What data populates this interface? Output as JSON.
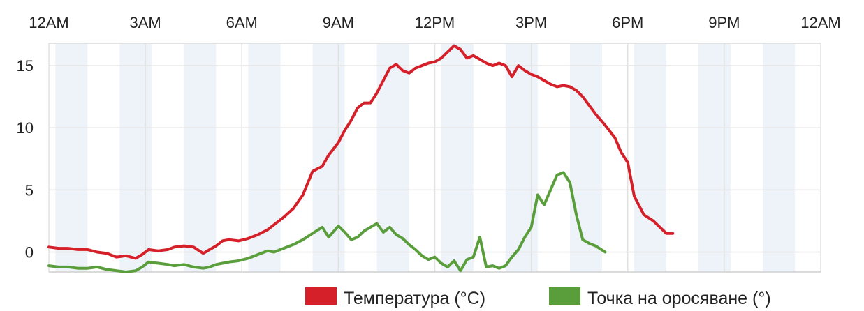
{
  "chart_data": {
    "type": "line",
    "title": "",
    "xlabel": "",
    "ylabel": "",
    "x_unit": "hours since midnight",
    "xlim": [
      0,
      24
    ],
    "ylim": [
      -1.6,
      16.8
    ],
    "x_ticks": [
      {
        "hour": 0,
        "label": "12AM"
      },
      {
        "hour": 3,
        "label": "3AM"
      },
      {
        "hour": 6,
        "label": "6AM"
      },
      {
        "hour": 9,
        "label": "9AM"
      },
      {
        "hour": 12,
        "label": "12PM"
      },
      {
        "hour": 15,
        "label": "3PM"
      },
      {
        "hour": 18,
        "label": "6PM"
      },
      {
        "hour": 21,
        "label": "9PM"
      },
      {
        "hour": 24,
        "label": "12AM"
      }
    ],
    "y_ticks": [
      {
        "value": 0,
        "label": "0"
      },
      {
        "value": 5,
        "label": "5"
      },
      {
        "value": 10,
        "label": "10"
      },
      {
        "value": 15,
        "label": "15"
      }
    ],
    "shaded_hour_bands": [
      [
        0.2,
        1.2
      ],
      [
        2.2,
        3.2
      ],
      [
        4.2,
        5.2
      ],
      [
        6.2,
        7.2
      ],
      [
        8.2,
        9.2
      ],
      [
        10.2,
        11.2
      ],
      [
        12.2,
        13.2
      ],
      [
        14.2,
        15.2
      ],
      [
        16.2,
        17.2
      ],
      [
        18.2,
        19.2
      ],
      [
        20.2,
        21.2
      ],
      [
        22.2,
        23.2
      ]
    ],
    "grid": true,
    "legend_position": "bottom-right",
    "series": [
      {
        "name": "Температура (°C)",
        "color": "#d5202a",
        "x": [
          0,
          0.3,
          0.6,
          0.9,
          1.2,
          1.5,
          1.8,
          2.1,
          2.4,
          2.7,
          2.9,
          3.1,
          3.4,
          3.7,
          3.9,
          4.2,
          4.5,
          4.8,
          5.0,
          5.2,
          5.4,
          5.6,
          5.9,
          6.2,
          6.5,
          6.8,
          7.0,
          7.3,
          7.6,
          7.9,
          8.2,
          8.5,
          8.7,
          9.0,
          9.2,
          9.4,
          9.6,
          9.8,
          10.0,
          10.2,
          10.4,
          10.6,
          10.8,
          11.0,
          11.2,
          11.4,
          11.6,
          11.8,
          12.0,
          12.2,
          12.4,
          12.6,
          12.8,
          13.0,
          13.2,
          13.4,
          13.6,
          13.8,
          14.0,
          14.2,
          14.4,
          14.6,
          14.8,
          15.0,
          15.2,
          15.4,
          15.6,
          15.8,
          16.0,
          16.2,
          16.4,
          16.6,
          16.8,
          17.0,
          17.3,
          17.6,
          17.8,
          18.0,
          18.2,
          18.5,
          18.8,
          19.0,
          19.2,
          19.4,
          19.6,
          19.8,
          20.0,
          20.2,
          20.3
        ],
        "values": [
          0.4,
          0.3,
          0.3,
          0.2,
          0.2,
          0.0,
          -0.1,
          -0.4,
          -0.3,
          -0.5,
          -0.2,
          0.2,
          0.1,
          0.2,
          0.4,
          0.5,
          0.4,
          -0.1,
          0.2,
          0.5,
          0.9,
          1.0,
          0.9,
          1.1,
          1.4,
          1.8,
          2.2,
          2.8,
          3.5,
          4.6,
          6.5,
          6.9,
          7.8,
          8.8,
          9.8,
          10.6,
          11.6,
          12.0,
          12.0,
          12.8,
          13.8,
          14.8,
          15.1,
          14.6,
          14.4,
          14.8,
          15.0,
          15.2,
          15.3,
          15.6,
          16.1,
          16.6,
          16.3,
          15.6,
          15.8,
          15.5,
          15.2,
          15.0,
          15.2,
          15.0,
          14.1,
          15.0,
          14.6,
          14.3,
          14.1,
          13.8,
          13.5,
          13.3,
          13.4,
          13.3,
          13.0,
          12.5,
          11.8,
          11.1,
          10.2,
          9.2,
          8.0,
          7.2,
          4.5,
          3.0,
          2.5,
          2.0,
          1.5,
          1.5,
          null,
          null,
          null,
          null,
          null
        ],
        "values_note": "temperature"
      },
      {
        "name": "Точка на оросяване (°)",
        "color": "#5a9e3c",
        "x": [
          0,
          0.3,
          0.6,
          0.9,
          1.2,
          1.5,
          1.8,
          2.1,
          2.4,
          2.7,
          2.9,
          3.1,
          3.4,
          3.7,
          3.9,
          4.2,
          4.5,
          4.8,
          5.0,
          5.2,
          5.4,
          5.6,
          5.9,
          6.2,
          6.5,
          6.8,
          7.0,
          7.3,
          7.6,
          7.9,
          8.2,
          8.5,
          8.7,
          9.0,
          9.2,
          9.4,
          9.6,
          9.8,
          10.0,
          10.2,
          10.4,
          10.6,
          10.8,
          11.0,
          11.2,
          11.4,
          11.6,
          11.8,
          12.0,
          12.2,
          12.4,
          12.6,
          12.8,
          13.0,
          13.2,
          13.4,
          13.6,
          13.8,
          14.0,
          14.2,
          14.4,
          14.6,
          14.8,
          15.0,
          15.2,
          15.4,
          15.6,
          15.8,
          16.0,
          16.2,
          16.4,
          16.6,
          16.8,
          17.0,
          17.3,
          17.6,
          17.8,
          18.0,
          18.2,
          18.5,
          18.8,
          19.0,
          19.2,
          19.4,
          19.6,
          19.8,
          20.0,
          20.2,
          20.3
        ],
        "values": [
          -1.1,
          -1.2,
          -1.2,
          -1.3,
          -1.3,
          -1.2,
          -1.4,
          -1.5,
          -1.6,
          -1.5,
          -1.2,
          -0.8,
          -0.9,
          -1.0,
          -1.1,
          -1.0,
          -1.2,
          -1.3,
          -1.2,
          -1.0,
          -0.9,
          -0.8,
          -0.7,
          -0.5,
          -0.2,
          0.1,
          0.0,
          0.3,
          0.6,
          1.0,
          1.5,
          2.0,
          1.2,
          2.1,
          1.6,
          1.0,
          1.2,
          1.7,
          2.0,
          2.3,
          1.6,
          2.0,
          1.4,
          1.1,
          0.6,
          0.2,
          -0.3,
          -0.6,
          -0.4,
          -0.9,
          -1.2,
          -0.7,
          -1.5,
          -0.6,
          -0.4,
          1.2,
          -1.2,
          -1.1,
          -1.3,
          -1.1,
          -0.4,
          0.2,
          1.2,
          2.0,
          4.6,
          3.8,
          5.0,
          6.2,
          6.4,
          5.6,
          3.0,
          1.0,
          0.7,
          0.5,
          0.0,
          null,
          null,
          null,
          null,
          null,
          null,
          null,
          null,
          null,
          null,
          null,
          null,
          null,
          null
        ],
        "values_note": "dew point"
      }
    ]
  },
  "legend": {
    "items": [
      {
        "label": "Температура (°C)",
        "color": "#d5202a"
      },
      {
        "label": "Точка на оросяване (°)",
        "color": "#5a9e3c"
      }
    ]
  }
}
